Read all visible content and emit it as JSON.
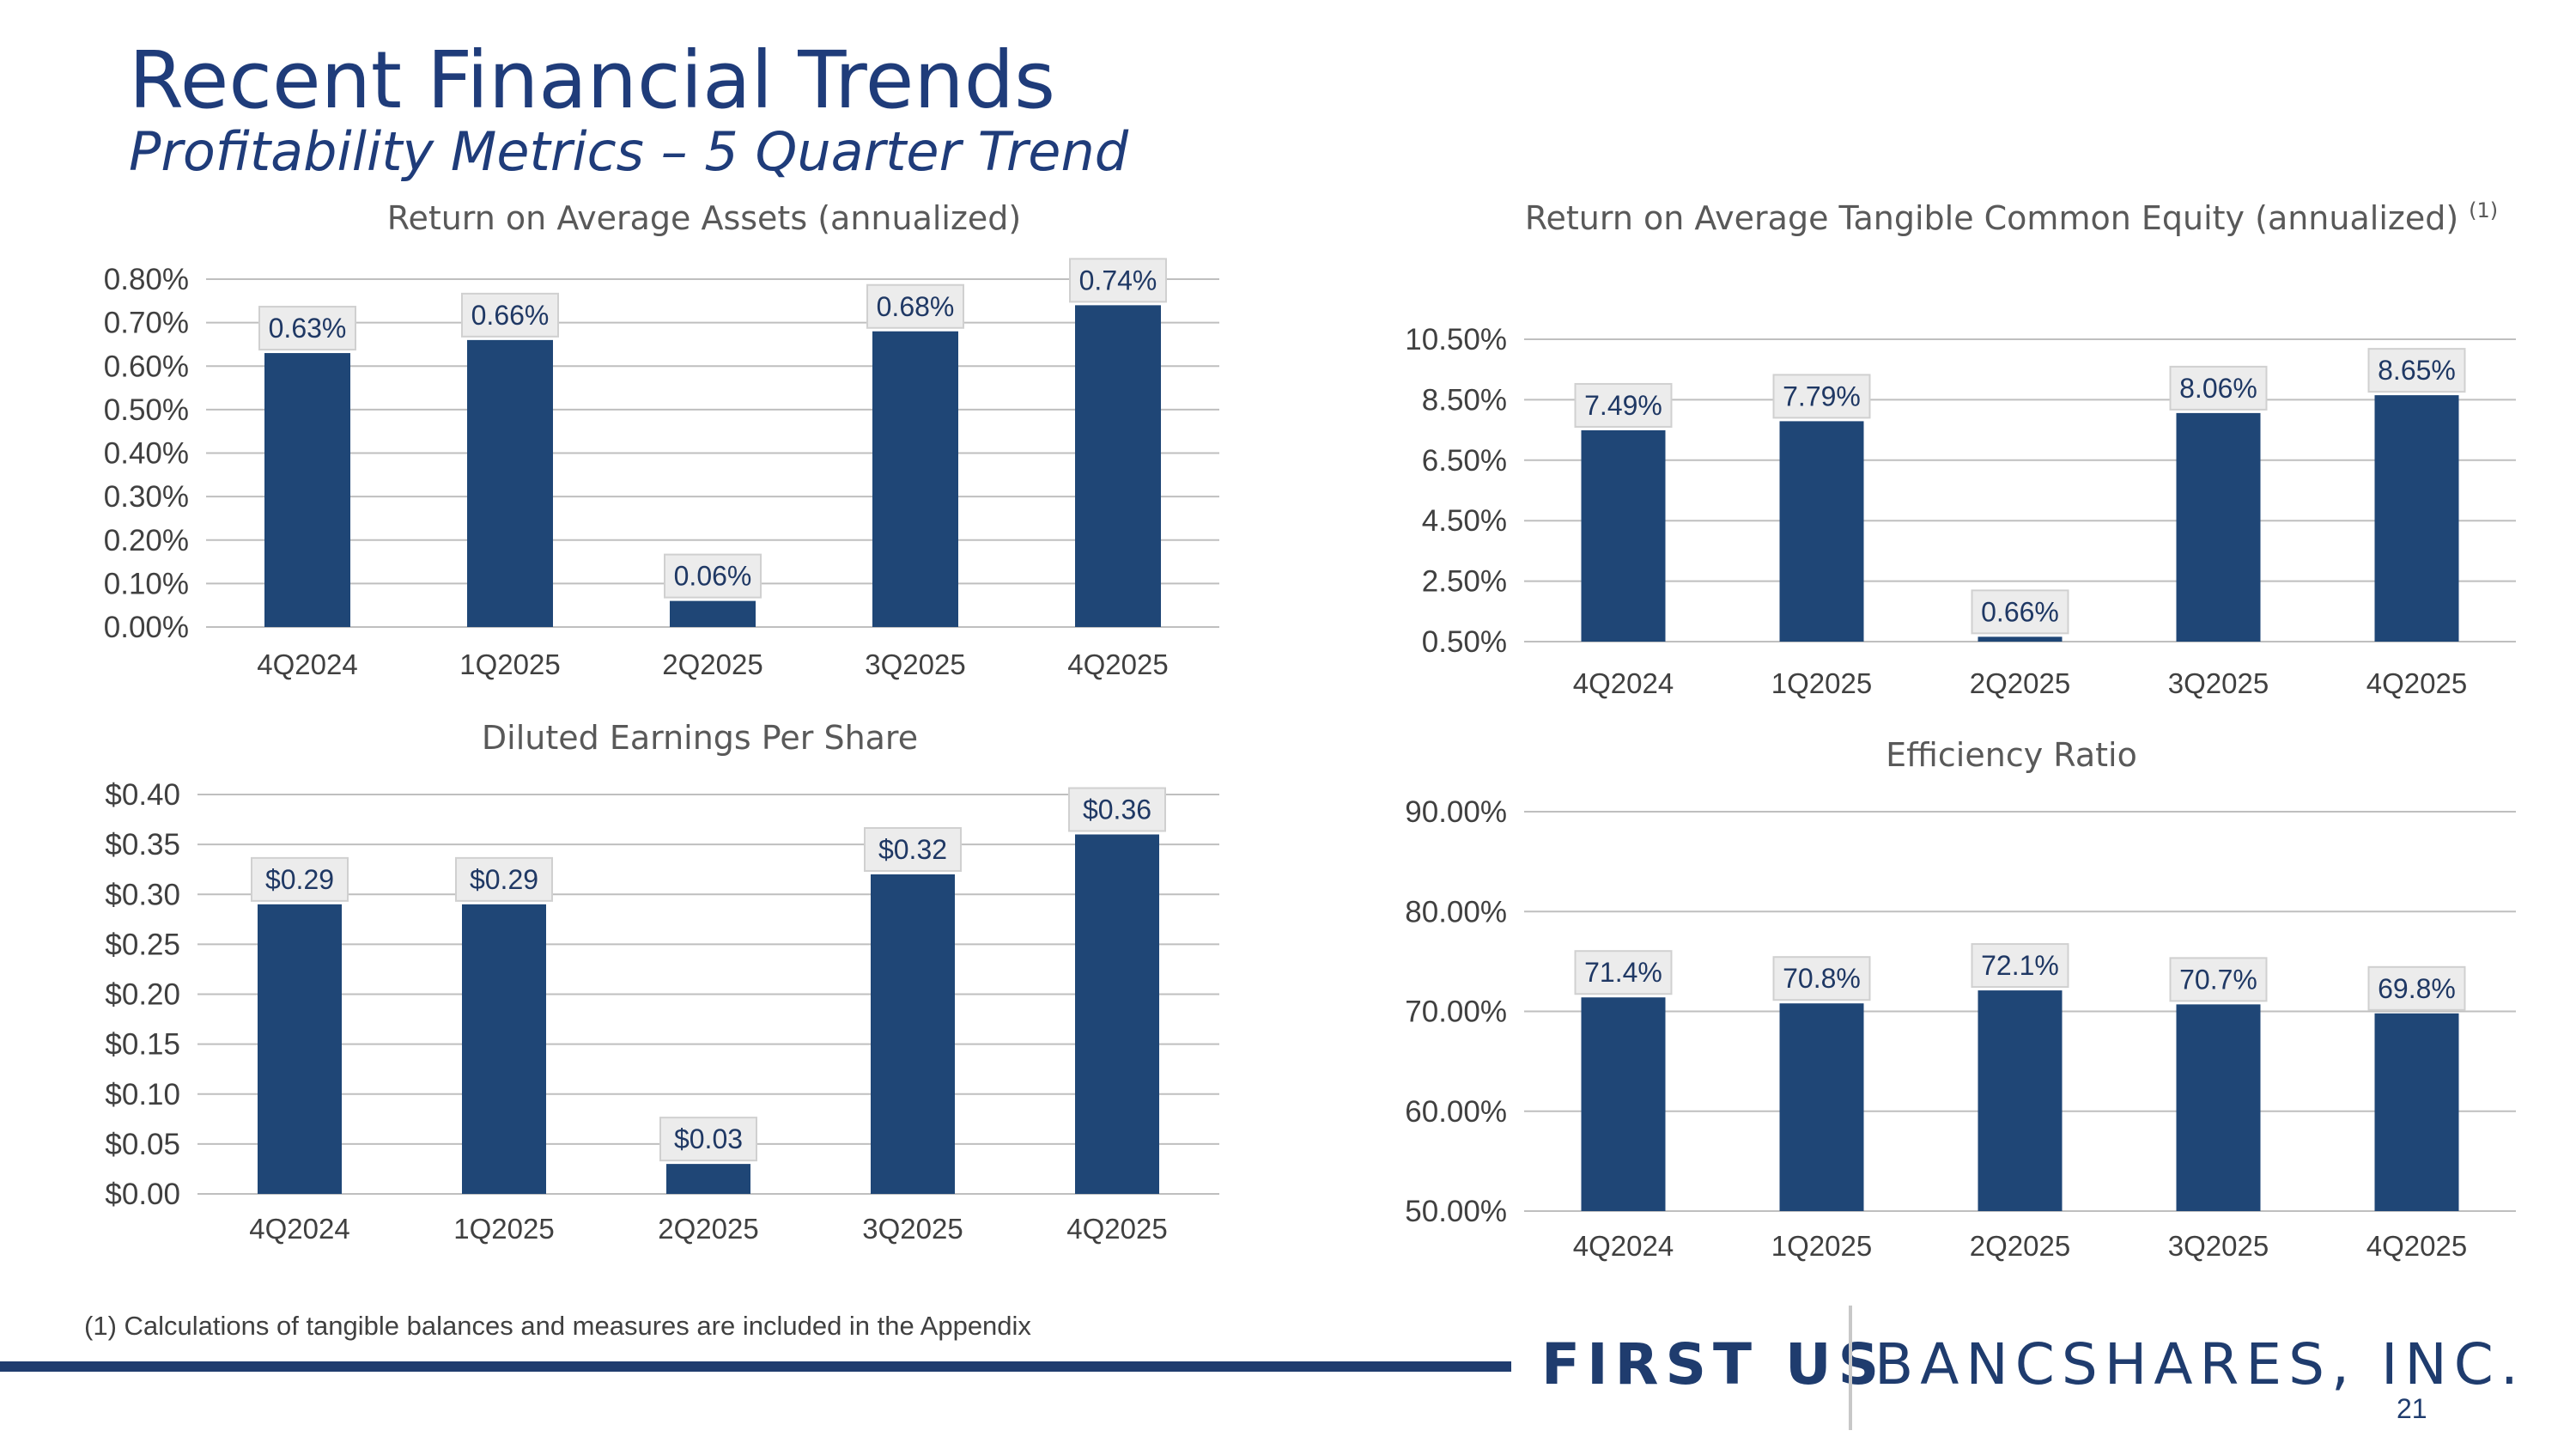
{
  "header": {
    "title": "Recent Financial Trends",
    "subtitle": "Profitability Metrics – 5 Quarter Trend"
  },
  "footnote": "(1) Calculations of tangible balances and measures are included in the Appendix",
  "logo": {
    "first": "FIRST US",
    "rest": "BANCSHARES, INC."
  },
  "page_number": "21",
  "colors": {
    "bar": "#1f4676",
    "label_bg": "#ececec",
    "grid": "#bfbfbf",
    "text": "#404040"
  },
  "chart_data": [
    {
      "type": "bar",
      "title": "Return on Average Assets (annualized)",
      "title_sup": "",
      "categories": [
        "4Q2024",
        "1Q2025",
        "2Q2025",
        "3Q2025",
        "4Q2025"
      ],
      "values": [
        0.63,
        0.66,
        0.06,
        0.68,
        0.74
      ],
      "value_labels": [
        "0.63%",
        "0.66%",
        "0.06%",
        "0.68%",
        "0.74%"
      ],
      "ylim": [
        0,
        0.8
      ],
      "yticks": [
        0,
        0.1,
        0.2,
        0.3,
        0.4,
        0.5,
        0.6,
        0.7,
        0.8
      ],
      "ytick_labels": [
        "0.00%",
        "0.10%",
        "0.20%",
        "0.30%",
        "0.40%",
        "0.50%",
        "0.60%",
        "0.70%",
        "0.80%"
      ]
    },
    {
      "type": "bar",
      "title": "Return on Average Tangible Common Equity (annualized)",
      "title_sup": "(1)",
      "categories": [
        "4Q2024",
        "1Q2025",
        "2Q2025",
        "3Q2025",
        "4Q2025"
      ],
      "values": [
        7.49,
        7.79,
        0.66,
        8.06,
        8.65
      ],
      "value_labels": [
        "7.49%",
        "7.79%",
        "0.66%",
        "8.06%",
        "8.65%"
      ],
      "ylim": [
        0.5,
        10.5
      ],
      "yticks": [
        0.5,
        2.5,
        4.5,
        6.5,
        8.5,
        10.5
      ],
      "ytick_labels": [
        "0.50%",
        "2.50%",
        "4.50%",
        "6.50%",
        "8.50%",
        "10.50%"
      ]
    },
    {
      "type": "bar",
      "title": "Diluted Earnings Per Share",
      "title_sup": "",
      "categories": [
        "4Q2024",
        "1Q2025",
        "2Q2025",
        "3Q2025",
        "4Q2025"
      ],
      "values": [
        0.29,
        0.29,
        0.03,
        0.32,
        0.36
      ],
      "value_labels": [
        "$0.29",
        "$0.29",
        "$0.03",
        "$0.32",
        "$0.36"
      ],
      "ylim": [
        0,
        0.4
      ],
      "yticks": [
        0,
        0.05,
        0.1,
        0.15,
        0.2,
        0.25,
        0.3,
        0.35,
        0.4
      ],
      "ytick_labels": [
        "$0.00",
        "$0.05",
        "$0.10",
        "$0.15",
        "$0.20",
        "$0.25",
        "$0.30",
        "$0.35",
        "$0.40"
      ]
    },
    {
      "type": "bar",
      "title": "Efficiency Ratio",
      "title_sup": "",
      "categories": [
        "4Q2024",
        "1Q2025",
        "2Q2025",
        "3Q2025",
        "4Q2025"
      ],
      "values": [
        71.4,
        70.8,
        72.1,
        70.7,
        69.8
      ],
      "value_labels": [
        "71.4%",
        "70.8%",
        "72.1%",
        "70.7%",
        "69.8%"
      ],
      "ylim": [
        50,
        90
      ],
      "yticks": [
        50,
        60,
        70,
        80,
        90
      ],
      "ytick_labels": [
        "50.00%",
        "60.00%",
        "70.00%",
        "80.00%",
        "90.00%"
      ]
    }
  ]
}
